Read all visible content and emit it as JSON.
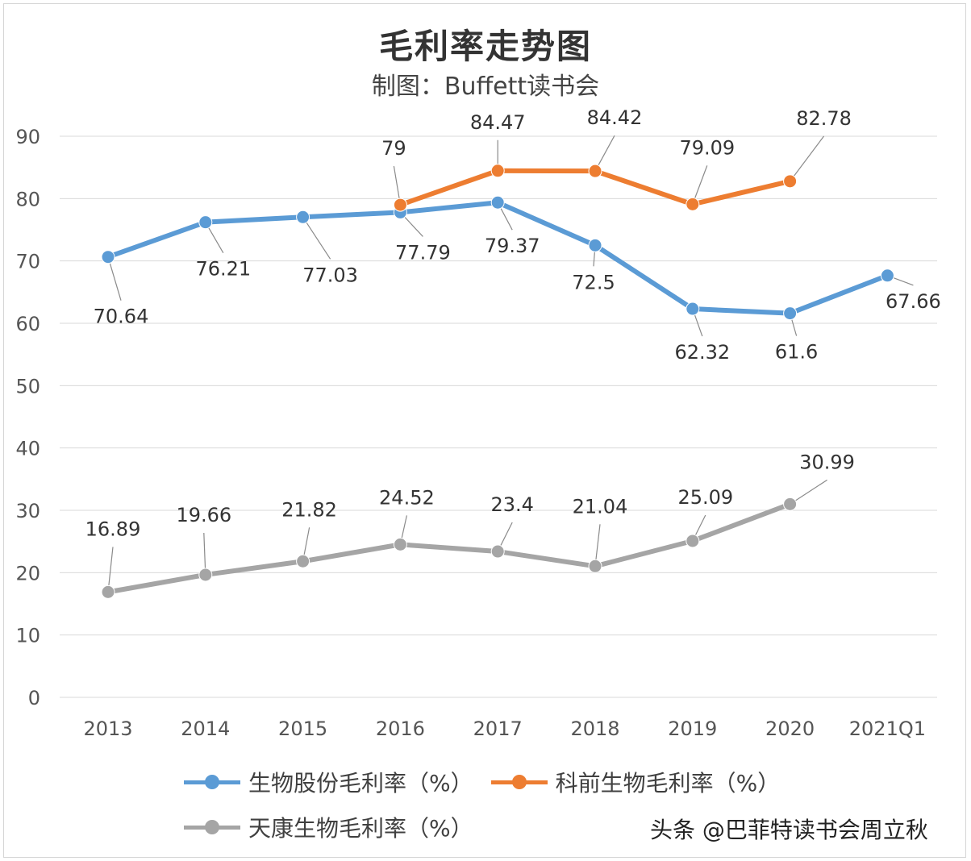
{
  "chart_data": {
    "type": "line",
    "title": "毛利率走势图",
    "subtitle": "制图：Buffett读书会",
    "categories": [
      "2013",
      "2014",
      "2015",
      "2016",
      "2017",
      "2018",
      "2019",
      "2020",
      "2021Q1"
    ],
    "ylim": [
      0,
      90
    ],
    "yticks": [
      0,
      10,
      20,
      30,
      40,
      50,
      60,
      70,
      80,
      90
    ],
    "grid": true,
    "legend_position": "bottom-left",
    "series": [
      {
        "name": "生物股份毛利率（%）",
        "color": "#5b9bd5",
        "values": [
          70.64,
          76.21,
          77.03,
          77.79,
          79.37,
          72.5,
          62.32,
          61.6,
          67.66
        ],
        "labels": [
          "70.64",
          "76.21",
          "77.03",
          "77.79",
          "79.37",
          "72.5",
          "62.32",
          "61.6",
          "67.66"
        ]
      },
      {
        "name": "科前生物毛利率（%）",
        "color": "#ed7d31",
        "values": [
          null,
          null,
          null,
          79,
          84.47,
          84.42,
          79.09,
          82.78,
          null
        ],
        "labels": [
          null,
          null,
          null,
          "79",
          "84.47",
          "84.42",
          "79.09",
          "82.78",
          null
        ]
      },
      {
        "name": "天康生物毛利率（%）",
        "color": "#a5a5a5",
        "values": [
          16.89,
          19.66,
          21.82,
          24.52,
          23.4,
          21.04,
          25.09,
          30.99,
          null
        ],
        "labels": [
          "16.89",
          "19.66",
          "21.82",
          "24.52",
          "23.4",
          "21.04",
          "25.09",
          "30.99",
          null
        ]
      }
    ]
  },
  "watermark": "头条 @巴菲特读书会周立秋"
}
